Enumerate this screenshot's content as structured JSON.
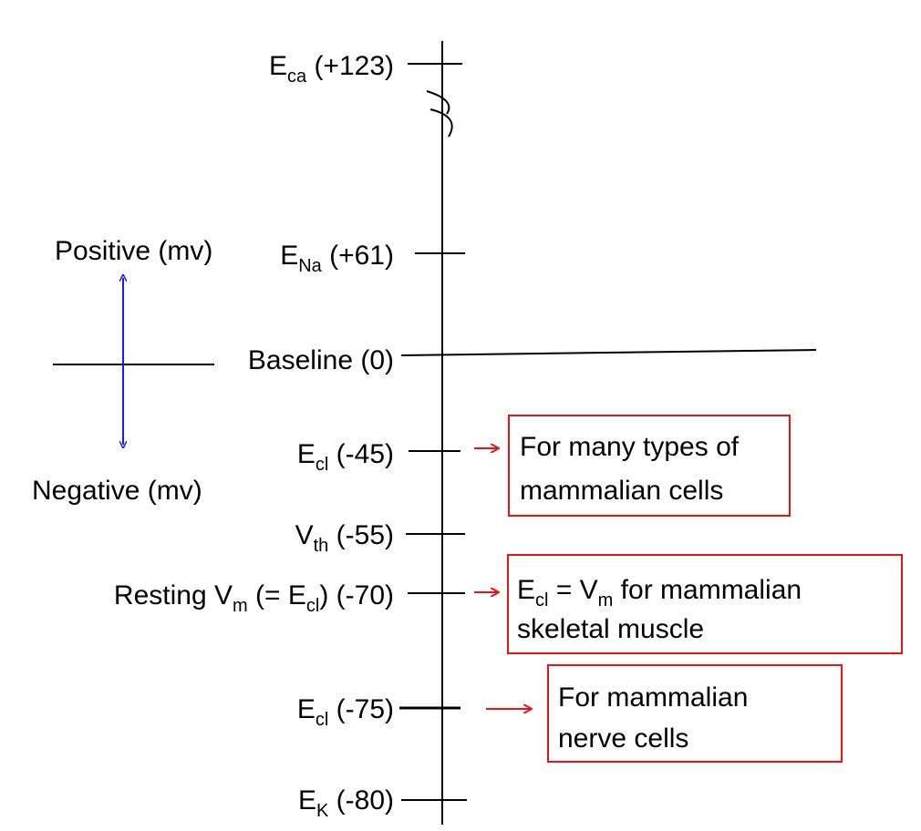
{
  "axis_labels": {
    "positive": "Positive (mv)",
    "negative": "Negative (mv)"
  },
  "levels": [
    {
      "label": [
        "E",
        "ca",
        " (+123)"
      ]
    },
    {
      "label": [
        "E",
        "Na",
        " (+61)"
      ]
    },
    {
      "label": [
        "Baseline (0)"
      ]
    },
    {
      "label": [
        "E",
        "cl",
        "  (-45)"
      ]
    },
    {
      "label": [
        "V",
        "th",
        " (-55)"
      ]
    },
    {
      "label": [
        "Resting V",
        "m",
        " (= E",
        "cl",
        ") (-70)"
      ]
    },
    {
      "label": [
        "E",
        "cl",
        " (-75)"
      ]
    },
    {
      "label": [
        "E",
        "K",
        " (-80)"
      ]
    }
  ],
  "notes": [
    {
      "lines": [
        [
          "For many types of"
        ],
        [
          "mammalian  cells"
        ]
      ]
    },
    {
      "lines": [
        [
          "E",
          "cl",
          " = V",
          "m",
          " for mammalian"
        ],
        [
          "skeletal muscle"
        ]
      ]
    },
    {
      "lines": [
        [
          "For mammalian"
        ],
        [
          "nerve cells"
        ]
      ]
    }
  ]
}
